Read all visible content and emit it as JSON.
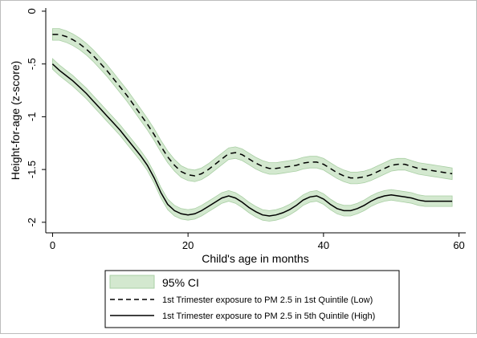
{
  "chart_data": {
    "type": "line",
    "title": "",
    "xlabel": "Child's age in months",
    "ylabel": "Height-for-age (z-score)",
    "xlim": [
      -1,
      61
    ],
    "ylim": [
      -2.1,
      0.03
    ],
    "x_ticks": [
      0,
      20,
      40,
      60
    ],
    "x_tick_labels": [
      "0",
      "20",
      "40",
      "60"
    ],
    "y_ticks": [
      0,
      -0.5,
      -1,
      -1.5,
      -2
    ],
    "y_tick_labels": [
      "0",
      "-.5",
      "-1",
      "-1.5",
      "-2"
    ],
    "grid": false,
    "legend_position": "bottom",
    "legend": {
      "ci_label": "95% CI",
      "low_label": "1st Trimester exposure to PM 2.5 in 1st Quintile (Low)",
      "high_label": "1st Trimester exposure to PM 2.5 in 5th Quintile (High)"
    },
    "colors": {
      "ci_fill": "#d3e8cf",
      "ci_edge": "#a9cfa4",
      "line": "#000000"
    },
    "x": [
      0,
      1,
      2,
      3,
      4,
      5,
      6,
      7,
      8,
      9,
      10,
      11,
      12,
      13,
      14,
      15,
      16,
      17,
      18,
      19,
      20,
      21,
      22,
      23,
      24,
      25,
      26,
      27,
      28,
      29,
      30,
      31,
      32,
      33,
      34,
      35,
      36,
      37,
      38,
      39,
      40,
      41,
      42,
      43,
      44,
      45,
      46,
      47,
      48,
      49,
      50,
      51,
      52,
      53,
      54,
      55,
      56,
      57,
      58,
      59
    ],
    "series": [
      {
        "name": "1st Trimester exposure to PM 2.5 in 1st Quintile (Low)",
        "style": "dashed",
        "values": [
          -0.22,
          -0.22,
          -0.24,
          -0.27,
          -0.31,
          -0.36,
          -0.42,
          -0.49,
          -0.56,
          -0.64,
          -0.72,
          -0.8,
          -0.89,
          -0.98,
          -1.07,
          -1.17,
          -1.28,
          -1.38,
          -1.46,
          -1.52,
          -1.55,
          -1.56,
          -1.54,
          -1.5,
          -1.45,
          -1.4,
          -1.35,
          -1.34,
          -1.36,
          -1.4,
          -1.44,
          -1.47,
          -1.49,
          -1.49,
          -1.48,
          -1.47,
          -1.46,
          -1.44,
          -1.43,
          -1.43,
          -1.45,
          -1.49,
          -1.53,
          -1.56,
          -1.58,
          -1.58,
          -1.57,
          -1.55,
          -1.52,
          -1.49,
          -1.46,
          -1.45,
          -1.45,
          -1.47,
          -1.49,
          -1.5,
          -1.51,
          -1.52,
          -1.53,
          -1.54
        ],
        "ci_half_width": 0.055
      },
      {
        "name": "1st Trimester exposure to PM 2.5 in 5th Quintile (High)",
        "style": "solid",
        "values": [
          -0.5,
          -0.56,
          -0.61,
          -0.66,
          -0.72,
          -0.78,
          -0.85,
          -0.92,
          -0.99,
          -1.06,
          -1.13,
          -1.21,
          -1.29,
          -1.37,
          -1.46,
          -1.58,
          -1.72,
          -1.83,
          -1.89,
          -1.92,
          -1.93,
          -1.92,
          -1.89,
          -1.85,
          -1.81,
          -1.77,
          -1.75,
          -1.77,
          -1.81,
          -1.86,
          -1.9,
          -1.93,
          -1.94,
          -1.93,
          -1.91,
          -1.88,
          -1.84,
          -1.79,
          -1.76,
          -1.75,
          -1.78,
          -1.83,
          -1.87,
          -1.89,
          -1.89,
          -1.87,
          -1.84,
          -1.8,
          -1.77,
          -1.75,
          -1.74,
          -1.75,
          -1.76,
          -1.77,
          -1.79,
          -1.8,
          -1.8,
          -1.8,
          -1.8,
          -1.8
        ],
        "ci_half_width": 0.05
      }
    ]
  }
}
